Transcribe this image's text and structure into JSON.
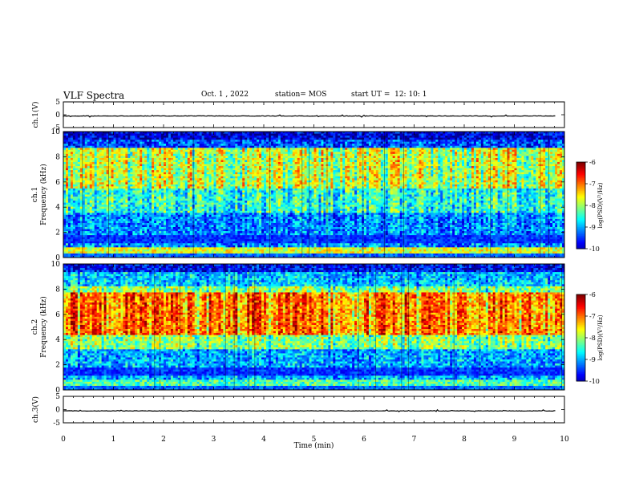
{
  "header": {
    "title": "VLF Spectra",
    "date": "Oct. 1 , 2022",
    "station": "station= MOS",
    "start": "start UT =  12: 10: 1"
  },
  "chart_data": [
    {
      "type": "line",
      "panel": "ch1-waveform",
      "ylabel": "ch.1(V)",
      "yticks": [
        "5",
        "0",
        "-5"
      ],
      "ylim": [
        -5,
        5
      ],
      "xlim": [
        0,
        10
      ],
      "value_approx": -0.5
    },
    {
      "type": "heatmap",
      "panel": "ch1-spectrogram",
      "ylabel_line1": "ch.1",
      "ylabel_line2": "Frequency (kHz)",
      "yticks": [
        "0",
        "2",
        "4",
        "6",
        "8",
        "10"
      ],
      "ylim": [
        0,
        10
      ],
      "xlim": [
        0,
        10
      ],
      "colorbar": {
        "label": "log(PSD)(V²/Hz)",
        "ticks": [
          "-6",
          "-7",
          "-8",
          "-9",
          "-10"
        ],
        "range": [
          -10,
          -6
        ]
      }
    },
    {
      "type": "heatmap",
      "panel": "ch2-spectrogram",
      "ylabel_line1": "ch.2",
      "ylabel_line2": "Frequency (kHz)",
      "yticks": [
        "0",
        "2",
        "4",
        "6",
        "8",
        "10"
      ],
      "ylim": [
        0,
        10
      ],
      "xlim": [
        0,
        10
      ],
      "colorbar": {
        "label": "log(PSD)(V²/Hz)",
        "ticks": [
          "-6",
          "-7",
          "-8",
          "-9",
          "-10"
        ],
        "range": [
          -10,
          -6
        ]
      }
    },
    {
      "type": "line",
      "panel": "ch3-waveform",
      "ylabel": "ch.3(V)",
      "yticks": [
        "5",
        "0",
        "-5"
      ],
      "ylim": [
        -5,
        5
      ],
      "xlim": [
        0,
        10
      ],
      "value_approx": -0.5
    },
    {
      "type": "axis",
      "panel": "time-axis",
      "xlabel": "Time (min)",
      "xticks": [
        "0",
        "1",
        "2",
        "3",
        "4",
        "5",
        "6",
        "7",
        "8",
        "9",
        "10"
      ],
      "xlim": [
        0,
        10
      ]
    }
  ]
}
